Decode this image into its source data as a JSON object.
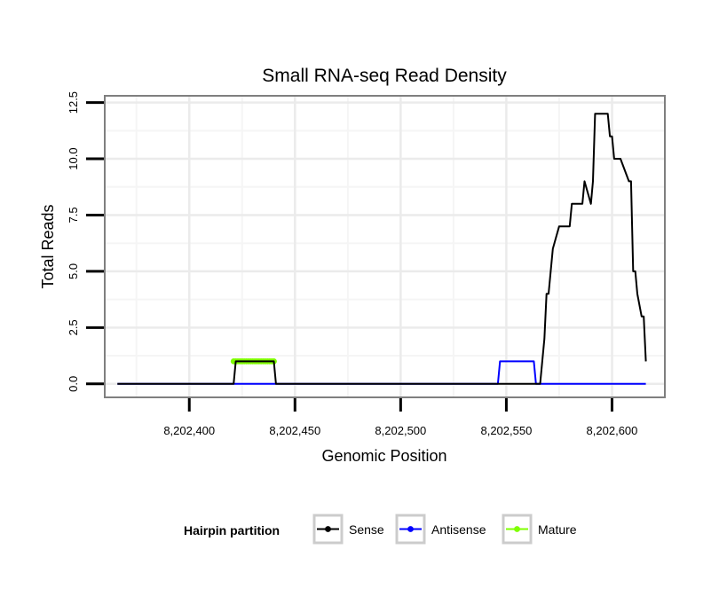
{
  "chart_data": {
    "type": "line",
    "title": "Small RNA-seq Read Density",
    "xlabel": "Genomic Position",
    "ylabel": "Total Reads",
    "xlim": [
      8202360,
      8202625
    ],
    "ylim": [
      -0.6,
      12.8
    ],
    "x_ticks": [
      8202400,
      8202450,
      8202500,
      8202550,
      8202600
    ],
    "x_tick_labels": [
      "8,202,400",
      "8,202,450",
      "8,202,500",
      "8,202,550",
      "8,202,600"
    ],
    "x_minor_ticks": [
      8202375,
      8202425,
      8202475,
      8202525,
      8202575,
      8202625
    ],
    "y_ticks": [
      0,
      2.5,
      5,
      7.5,
      10,
      12.5
    ],
    "y_tick_labels": [
      "0.0",
      "2.5",
      "5.0",
      "7.5",
      "10.0",
      "12.5"
    ],
    "y_minor_ticks": [
      1.25,
      3.75,
      6.25,
      8.75,
      11.25
    ],
    "grid": true,
    "legend": {
      "title": "Hairpin partition",
      "position": "bottom",
      "entries": [
        "Sense",
        "Antisense",
        "Mature"
      ]
    },
    "series": [
      {
        "name": "Sense",
        "color": "#000000",
        "x": [
          8202366,
          8202421,
          8202422,
          8202440,
          8202441,
          8202566,
          8202567,
          8202568,
          8202569,
          8202570,
          8202571,
          8202572,
          8202575,
          8202576,
          8202580,
          8202581,
          8202582,
          8202583,
          8202584,
          8202585,
          8202586,
          8202587,
          8202590,
          8202591,
          8202592,
          8202593,
          8202594,
          8202596,
          8202597,
          8202598,
          8202599,
          8202600,
          8202601,
          8202602,
          8202603,
          8202604,
          8202608,
          8202609,
          8202610,
          8202611,
          8202612,
          8202614,
          8202615,
          8202616
        ],
        "values": [
          0,
          0,
          1,
          1,
          0,
          0,
          1,
          2,
          4,
          4,
          5,
          6,
          7,
          7,
          7,
          8,
          8,
          8,
          8,
          8,
          8,
          9,
          8,
          9,
          12,
          12,
          12,
          12,
          12,
          12,
          11,
          11,
          10,
          10,
          10,
          10,
          9,
          9,
          5,
          5,
          4,
          3,
          3,
          1
        ]
      },
      {
        "name": "Antisense",
        "color": "#0000ff",
        "x": [
          8202366,
          8202546,
          8202547,
          8202563,
          8202564,
          8202616
        ],
        "values": [
          0,
          0,
          1,
          1,
          0,
          0
        ]
      },
      {
        "name": "Mature",
        "color": "#7fff00",
        "x": [
          8202421,
          8202422,
          8202423,
          8202424,
          8202425,
          8202426,
          8202427,
          8202428,
          8202429,
          8202430,
          8202431,
          8202432,
          8202433,
          8202434,
          8202435,
          8202436,
          8202437,
          8202438,
          8202439,
          8202440
        ],
        "values": [
          1,
          1,
          1,
          1,
          1,
          1,
          1,
          1,
          1,
          1,
          1,
          1,
          1,
          1,
          1,
          1,
          1,
          1,
          1,
          1
        ]
      }
    ]
  }
}
